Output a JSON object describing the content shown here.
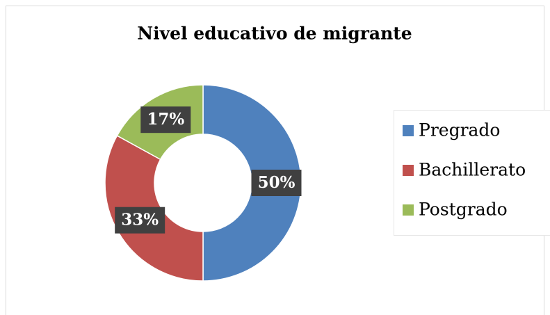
{
  "chart_data": {
    "type": "donut",
    "title": "Nivel educativo de migrante",
    "categories": [
      "Pregrado",
      "Bachillerato",
      "Postgrado"
    ],
    "values": [
      50,
      33,
      17
    ],
    "value_labels": [
      "50%",
      "33%",
      "17%"
    ],
    "colors": [
      "#4f81bd",
      "#c0504d",
      "#9bbb59"
    ],
    "legend": "right"
  }
}
